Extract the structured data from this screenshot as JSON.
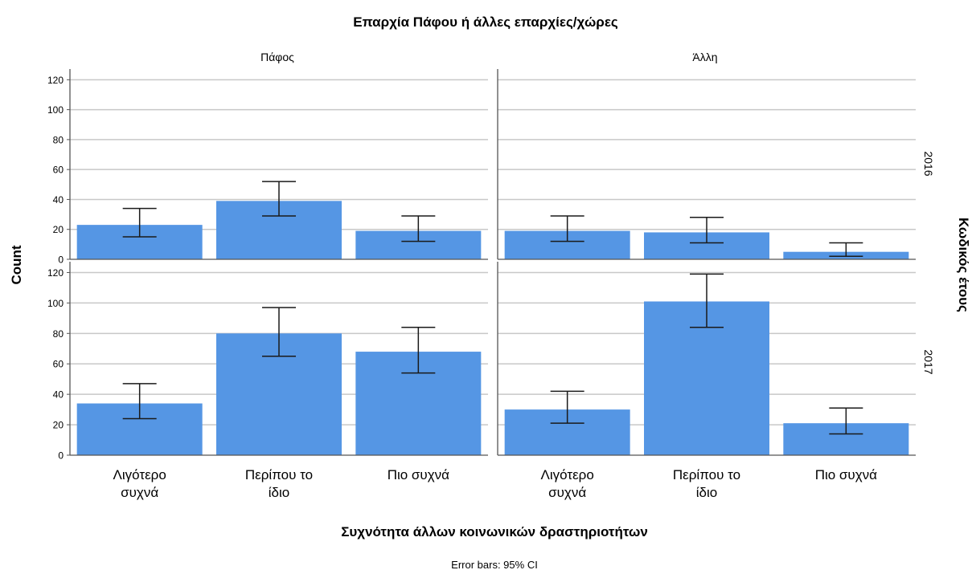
{
  "chart_data": {
    "type": "bar",
    "title": "Επαρχία Πάφου ή άλλες επαρχίες/χώρες",
    "xlabel": "Συχνότητα άλλων κοινωνικών δραστηριοτήτων",
    "ylabel": "Count",
    "row_label": "Κωδικός έτους",
    "footnote": "Error bars: 95% CI",
    "categories": [
      [
        "Λιγότερο",
        "συχνά"
      ],
      [
        "Περίπου το",
        "ίδιο"
      ],
      [
        "Πιο συχνά"
      ]
    ],
    "columns": [
      "Πάφος",
      "Άλλη"
    ],
    "rows": [
      "2016",
      "2017"
    ],
    "ylim": [
      0,
      125
    ],
    "yticks": [
      0,
      20,
      40,
      60,
      80,
      100,
      120
    ],
    "grid": true,
    "bar_color": "#5596e4",
    "panels": [
      {
        "column": "Πάφος",
        "row": "2016",
        "values": [
          23,
          39,
          19
        ],
        "ci_low": [
          15,
          29,
          12
        ],
        "ci_high": [
          34,
          52,
          29
        ]
      },
      {
        "column": "Άλλη",
        "row": "2016",
        "values": [
          19,
          18,
          5
        ],
        "ci_low": [
          12,
          11,
          2
        ],
        "ci_high": [
          29,
          28,
          11
        ]
      },
      {
        "column": "Πάφος",
        "row": "2017",
        "values": [
          34,
          80,
          68
        ],
        "ci_low": [
          24,
          65,
          54
        ],
        "ci_high": [
          47,
          97,
          84
        ]
      },
      {
        "column": "Άλλη",
        "row": "2017",
        "values": [
          30,
          101,
          21
        ],
        "ci_low": [
          21,
          84,
          14
        ],
        "ci_high": [
          42,
          119,
          31
        ]
      }
    ]
  }
}
